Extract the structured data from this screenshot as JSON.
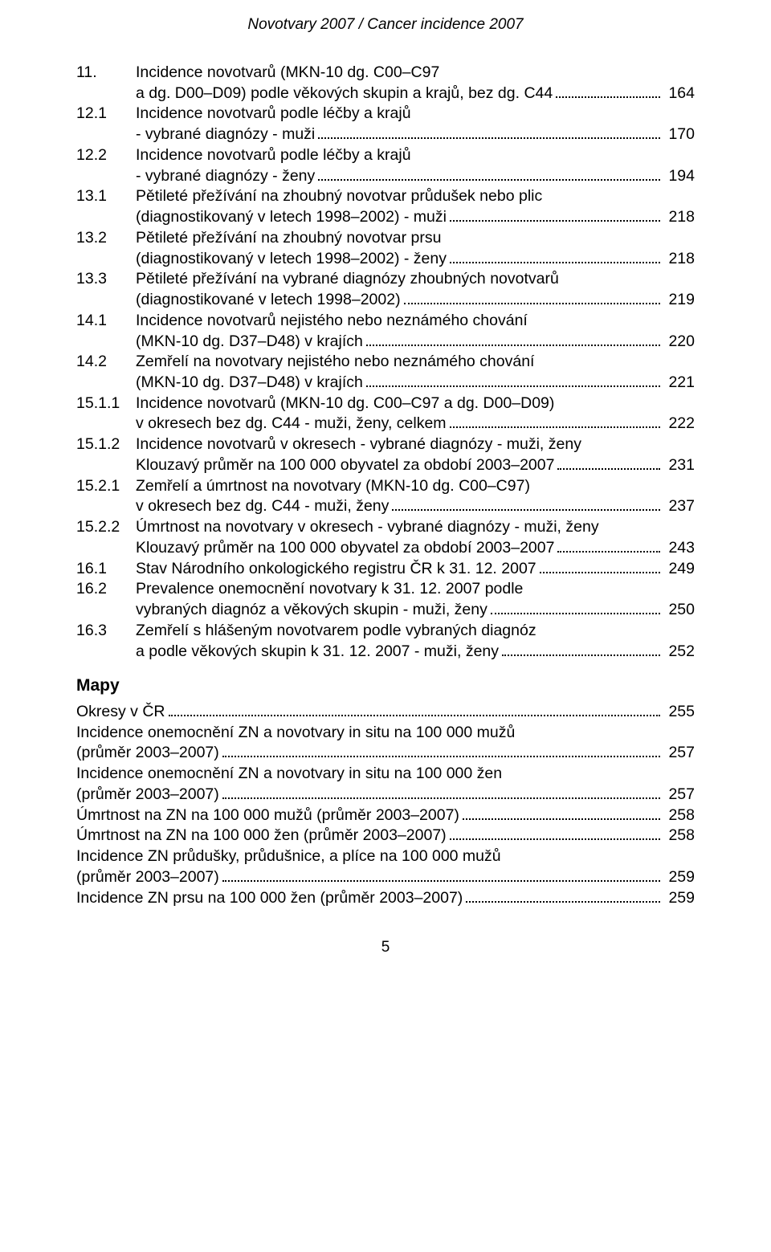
{
  "header": "Novotvary 2007 / Cancer incidence 2007",
  "footer_page": "5",
  "numbered": [
    {
      "num": "11.",
      "lines": [
        "Incidence novotvarů (MKN-10 dg. C00–C97",
        "a dg. D00–D09) podle věkových skupin a krajů, bez dg. C44"
      ],
      "page": "164"
    },
    {
      "num": "12.1",
      "lines": [
        "Incidence novotvarů podle léčby a krajů",
        "- vybrané diagnózy - muži"
      ],
      "page": "170"
    },
    {
      "num": "12.2",
      "lines": [
        "Incidence novotvarů podle léčby a krajů",
        "- vybrané diagnózy - ženy"
      ],
      "page": "194"
    },
    {
      "num": "13.1",
      "lines": [
        "Pětileté přežívání na zhoubný novotvar průdušek nebo plic",
        "(diagnostikovaný v letech 1998–2002) - muži"
      ],
      "page": "218"
    },
    {
      "num": "13.2",
      "lines": [
        "Pětileté přežívání na zhoubný novotvar prsu",
        "(diagnostikovaný v letech 1998–2002) - ženy"
      ],
      "page": "218"
    },
    {
      "num": "13.3",
      "lines": [
        "Pětileté přežívání na vybrané diagnózy zhoubných novotvarů",
        "(diagnostikované v letech 1998–2002)"
      ],
      "page": "219"
    },
    {
      "num": "14.1",
      "lines": [
        "Incidence novotvarů nejistého nebo neznámého chování",
        "(MKN-10 dg. D37–D48) v krajích"
      ],
      "page": "220"
    },
    {
      "num": "14.2",
      "lines": [
        "Zemřelí na novotvary nejistého nebo neznámého chování",
        "(MKN-10 dg. D37–D48) v krajích"
      ],
      "page": "221"
    },
    {
      "num": "15.1.1",
      "lines": [
        "Incidence novotvarů (MKN-10 dg. C00–C97 a dg. D00–D09)",
        "v okresech bez dg. C44 - muži, ženy, celkem"
      ],
      "page": "222"
    },
    {
      "num": "15.1.2",
      "lines": [
        "Incidence novotvarů v okresech - vybrané diagnózy - muži, ženy",
        "Klouzavý průměr na 100 000 obyvatel za období 2003–2007"
      ],
      "page": "231"
    },
    {
      "num": "15.2.1",
      "lines": [
        "Zemřelí a úmrtnost na novotvary (MKN-10 dg. C00–C97)",
        "v okresech bez dg. C44 - muži, ženy"
      ],
      "page": "237"
    },
    {
      "num": "15.2.2",
      "lines": [
        "Úmrtnost na novotvary v okresech - vybrané diagnózy - muži, ženy",
        "Klouzavý průměr na 100 000 obyvatel za období 2003–2007"
      ],
      "page": "243"
    },
    {
      "num": "16.1",
      "lines": [
        "Stav Národního onkologického registru ČR k 31. 12. 2007"
      ],
      "page": "249"
    },
    {
      "num": "16.2",
      "lines": [
        "Prevalence onemocnění novotvary k 31. 12. 2007 podle",
        "vybraných diagnóz a věkových skupin - muži, ženy"
      ],
      "page": "250"
    },
    {
      "num": "16.3",
      "lines": [
        "Zemřelí s hlášeným novotvarem podle vybraných diagnóz",
        "a podle věkových skupin k 31. 12. 2007 - muži, ženy"
      ],
      "page": "252"
    }
  ],
  "maps_title": "Mapy",
  "maps": [
    {
      "lines": [
        "Okresy v ČR"
      ],
      "page": "255"
    },
    {
      "lines": [
        "Incidence onemocnění ZN a novotvary in situ na 100 000 mužů",
        "(průměr 2003–2007)"
      ],
      "page": "257"
    },
    {
      "lines": [
        "Incidence onemocnění ZN a novotvary in situ na 100 000 žen",
        "(průměr 2003–2007)"
      ],
      "page": "257"
    },
    {
      "lines": [
        "Úmrtnost na ZN na 100 000 mužů (průměr 2003–2007)"
      ],
      "page": "258"
    },
    {
      "lines": [
        "Úmrtnost na ZN na 100 000 žen (průměr 2003–2007)"
      ],
      "page": "258"
    },
    {
      "lines": [
        "Incidence ZN průdušky, průdušnice, a plíce na 100 000 mužů",
        "(průměr 2003–2007)"
      ],
      "page": "259"
    },
    {
      "lines": [
        "Incidence ZN prsu na 100 000 žen (průměr 2003–2007)"
      ],
      "page": "259"
    }
  ]
}
